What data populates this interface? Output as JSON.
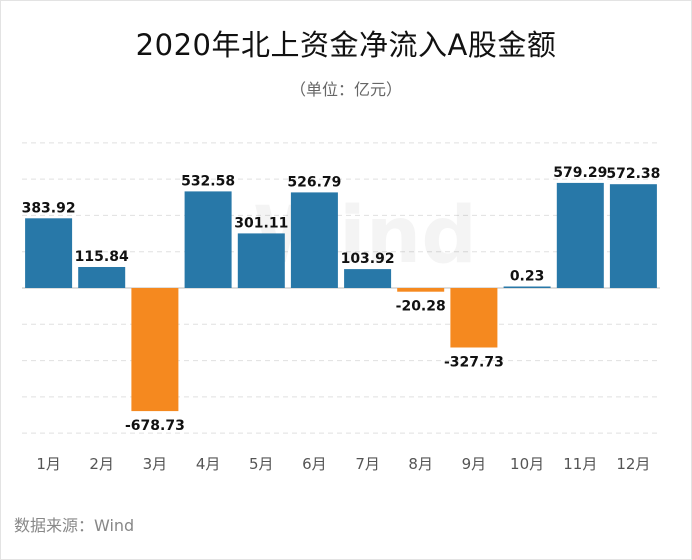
{
  "title": "2020年北上资金净流入A股金额",
  "subtitle": "（单位：亿元）",
  "source": "数据来源：Wind",
  "watermark": "Wind",
  "chart_data": {
    "type": "bar",
    "categories": [
      "1月",
      "2月",
      "3月",
      "4月",
      "5月",
      "6月",
      "7月",
      "8月",
      "9月",
      "10月",
      "11月",
      "12月"
    ],
    "values": [
      383.92,
      115.84,
      -678.73,
      532.58,
      301.11,
      526.79,
      103.92,
      -20.28,
      -327.73,
      0.23,
      579.29,
      572.38
    ],
    "labels": [
      "383.92",
      "115.84",
      "-678.73",
      "532.58",
      "301.11",
      "526.79",
      "103.92",
      "-20.28",
      "-327.73",
      "0.23",
      "579.29",
      "572.38"
    ],
    "ylim": [
      -800,
      800
    ],
    "grid": true,
    "colors": {
      "positive": "#2878a8",
      "negative": "#f5891f"
    }
  }
}
